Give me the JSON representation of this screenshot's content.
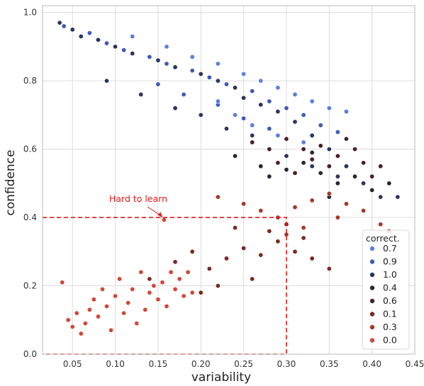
{
  "chart_data": {
    "type": "scatter",
    "xlabel": "variability",
    "ylabel": "confidence",
    "xlim": [
      0.015,
      0.45
    ],
    "ylim": [
      0.0,
      1.02
    ],
    "x_ticks": [
      "0.05",
      "0.10",
      "0.15",
      "0.20",
      "0.25",
      "0.30",
      "0.35",
      "0.40",
      "0.45"
    ],
    "y_ticks": [
      "0.0",
      "0.2",
      "0.4",
      "0.6",
      "0.8",
      "1.0"
    ],
    "grid": true,
    "legend": {
      "title": "correct.",
      "placement": "bottom-right",
      "entries": [
        {
          "label": "0.7",
          "color": "#5b7fe0"
        },
        {
          "label": "0.9",
          "color": "#3f5ab8"
        },
        {
          "label": "1.0",
          "color": "#2a3560"
        },
        {
          "label": "0.4",
          "color": "#2c2433"
        },
        {
          "label": "0.6",
          "color": "#4a1f26"
        },
        {
          "label": "0.1",
          "color": "#7a2a22"
        },
        {
          "label": "0.3",
          "color": "#a8372b"
        },
        {
          "label": "0.0",
          "color": "#d2493a"
        }
      ]
    },
    "annotation": {
      "text": "Hard to learn",
      "color": "#e41a1c",
      "region": {
        "x_max": 0.3,
        "y_max": 0.4
      },
      "arrow_target": [
        0.157,
        0.393
      ]
    },
    "series": [
      {
        "label": "1.0",
        "points": [
          [
            0.035,
            0.97
          ],
          [
            0.05,
            0.95
          ],
          [
            0.06,
            0.93
          ],
          [
            0.08,
            0.92
          ],
          [
            0.1,
            0.9
          ],
          [
            0.12,
            0.88
          ],
          [
            0.15,
            0.86
          ],
          [
            0.17,
            0.84
          ],
          [
            0.2,
            0.82
          ],
          [
            0.22,
            0.8
          ],
          [
            0.24,
            0.78
          ],
          [
            0.25,
            0.75
          ],
          [
            0.27,
            0.73
          ],
          [
            0.29,
            0.71
          ],
          [
            0.31,
            0.68
          ],
          [
            0.33,
            0.64
          ],
          [
            0.35,
            0.6
          ],
          [
            0.37,
            0.55
          ],
          [
            0.39,
            0.5
          ],
          [
            0.41,
            0.46
          ],
          [
            0.43,
            0.46
          ],
          [
            0.09,
            0.8
          ],
          [
            0.13,
            0.76
          ],
          [
            0.17,
            0.72
          ],
          [
            0.2,
            0.7
          ],
          [
            0.23,
            0.66
          ],
          [
            0.26,
            0.64
          ],
          [
            0.3,
            0.58
          ],
          [
            0.33,
            0.55
          ],
          [
            0.36,
            0.52
          ]
        ]
      },
      {
        "label": "0.9",
        "points": [
          [
            0.04,
            0.96
          ],
          [
            0.07,
            0.94
          ],
          [
            0.09,
            0.91
          ],
          [
            0.11,
            0.89
          ],
          [
            0.14,
            0.87
          ],
          [
            0.16,
            0.85
          ],
          [
            0.19,
            0.83
          ],
          [
            0.21,
            0.81
          ],
          [
            0.23,
            0.79
          ],
          [
            0.26,
            0.77
          ],
          [
            0.28,
            0.74
          ],
          [
            0.3,
            0.72
          ],
          [
            0.32,
            0.7
          ],
          [
            0.34,
            0.67
          ],
          [
            0.36,
            0.65
          ],
          [
            0.15,
            0.79
          ],
          [
            0.18,
            0.76
          ],
          [
            0.22,
            0.73
          ],
          [
            0.25,
            0.69
          ],
          [
            0.28,
            0.66
          ]
        ]
      },
      {
        "label": "0.7",
        "points": [
          [
            0.12,
            0.93
          ],
          [
            0.16,
            0.9
          ],
          [
            0.19,
            0.87
          ],
          [
            0.22,
            0.85
          ],
          [
            0.25,
            0.82
          ],
          [
            0.27,
            0.8
          ],
          [
            0.29,
            0.78
          ],
          [
            0.31,
            0.76
          ],
          [
            0.33,
            0.74
          ],
          [
            0.35,
            0.72
          ],
          [
            0.37,
            0.71
          ],
          [
            0.22,
            0.74
          ],
          [
            0.24,
            0.7
          ],
          [
            0.26,
            0.67
          ],
          [
            0.29,
            0.64
          ],
          [
            0.32,
            0.62
          ]
        ]
      },
      {
        "label": "0.6",
        "points": [
          [
            0.26,
            0.62
          ],
          [
            0.28,
            0.6
          ],
          [
            0.3,
            0.63
          ],
          [
            0.32,
            0.6
          ],
          [
            0.33,
            0.57
          ],
          [
            0.35,
            0.55
          ],
          [
            0.36,
            0.58
          ],
          [
            0.38,
            0.6
          ],
          [
            0.39,
            0.56
          ],
          [
            0.4,
            0.52
          ],
          [
            0.34,
            0.61
          ],
          [
            0.37,
            0.63
          ],
          [
            0.29,
            0.56
          ],
          [
            0.31,
            0.53
          ],
          [
            0.41,
            0.55
          ]
        ]
      },
      {
        "label": "0.4",
        "points": [
          [
            0.24,
            0.58
          ],
          [
            0.27,
            0.55
          ],
          [
            0.3,
            0.54
          ],
          [
            0.32,
            0.56
          ],
          [
            0.34,
            0.53
          ],
          [
            0.36,
            0.5
          ],
          [
            0.38,
            0.52
          ],
          [
            0.4,
            0.48
          ],
          [
            0.35,
            0.46
          ],
          [
            0.33,
            0.59
          ],
          [
            0.28,
            0.52
          ],
          [
            0.42,
            0.5
          ]
        ]
      },
      {
        "label": "0.3",
        "points": [
          [
            0.22,
            0.46
          ],
          [
            0.25,
            0.44
          ],
          [
            0.27,
            0.42
          ],
          [
            0.29,
            0.4
          ],
          [
            0.31,
            0.43
          ],
          [
            0.33,
            0.45
          ],
          [
            0.35,
            0.47
          ],
          [
            0.37,
            0.44
          ],
          [
            0.39,
            0.42
          ],
          [
            0.41,
            0.38
          ],
          [
            0.42,
            0.36
          ],
          [
            0.3,
            0.35
          ],
          [
            0.32,
            0.37
          ],
          [
            0.36,
            0.4
          ]
        ]
      },
      {
        "label": "0.1",
        "points": [
          [
            0.14,
            0.22
          ],
          [
            0.17,
            0.27
          ],
          [
            0.19,
            0.3
          ],
          [
            0.21,
            0.25
          ],
          [
            0.23,
            0.28
          ],
          [
            0.25,
            0.31
          ],
          [
            0.27,
            0.29
          ],
          [
            0.29,
            0.33
          ],
          [
            0.31,
            0.3
          ],
          [
            0.33,
            0.28
          ],
          [
            0.35,
            0.25
          ],
          [
            0.28,
            0.36
          ],
          [
            0.3,
            0.38
          ],
          [
            0.32,
            0.34
          ],
          [
            0.26,
            0.22
          ],
          [
            0.22,
            0.2
          ],
          [
            0.2,
            0.18
          ],
          [
            0.24,
            0.37
          ]
        ]
      },
      {
        "label": "0.0",
        "points": [
          [
            0.038,
            0.21
          ],
          [
            0.045,
            0.1
          ],
          [
            0.05,
            0.08
          ],
          [
            0.055,
            0.12
          ],
          [
            0.06,
            0.06
          ],
          [
            0.065,
            0.09
          ],
          [
            0.07,
            0.13
          ],
          [
            0.075,
            0.16
          ],
          [
            0.08,
            0.11
          ],
          [
            0.085,
            0.19
          ],
          [
            0.09,
            0.14
          ],
          [
            0.095,
            0.07
          ],
          [
            0.1,
            0.17
          ],
          [
            0.105,
            0.22
          ],
          [
            0.11,
            0.12
          ],
          [
            0.115,
            0.15
          ],
          [
            0.12,
            0.19
          ],
          [
            0.125,
            0.09
          ],
          [
            0.13,
            0.24
          ],
          [
            0.135,
            0.13
          ],
          [
            0.14,
            0.18
          ],
          [
            0.145,
            0.2
          ],
          [
            0.15,
            0.16
          ],
          [
            0.155,
            0.21
          ],
          [
            0.16,
            0.14
          ],
          [
            0.165,
            0.24
          ],
          [
            0.17,
            0.19
          ],
          [
            0.175,
            0.22
          ],
          [
            0.18,
            0.17
          ],
          [
            0.185,
            0.24
          ],
          [
            0.19,
            0.18
          ],
          [
            0.157,
            0.393
          ]
        ]
      }
    ]
  }
}
